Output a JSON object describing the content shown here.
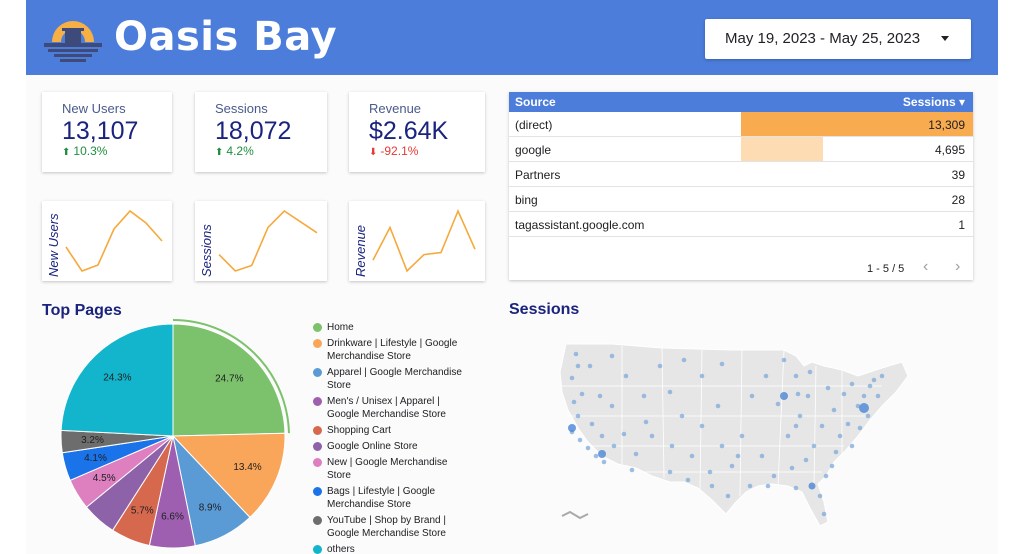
{
  "header": {
    "brand": "Oasis Bay",
    "date_range": "May 19, 2023 - May 25, 2023",
    "colors": {
      "bar": "#4c7ddb",
      "logo_orange": "#f6b045",
      "logo_navy": "#3d4a7a"
    }
  },
  "kpis": [
    {
      "label": "New Users",
      "value": "13,107",
      "delta": "10.3%",
      "direction": "up"
    },
    {
      "label": "Sessions",
      "value": "18,072",
      "delta": "4.2%",
      "direction": "up"
    },
    {
      "label": "Revenue",
      "value": "$2.64K",
      "delta": "-92.1%",
      "direction": "down"
    }
  ],
  "sparklines": [
    {
      "label": "New Users",
      "values": [
        5,
        3,
        3.5,
        6.5,
        8,
        7,
        5.5
      ]
    },
    {
      "label": "Sessions",
      "values": [
        4,
        2.5,
        3,
        6.5,
        8,
        7,
        6
      ]
    },
    {
      "label": "Revenue",
      "values": [
        1.5,
        4.5,
        0.5,
        2,
        2.2,
        6,
        2.5
      ]
    }
  ],
  "source_table": {
    "col_source": "Source",
    "col_sessions": "Sessions",
    "sort_indicator": "▾",
    "rows": [
      {
        "source": "(direct)",
        "sessions": "13,309",
        "value": 13309
      },
      {
        "source": "google",
        "sessions": "4,695",
        "value": 4695
      },
      {
        "source": "Partners",
        "sessions": "39",
        "value": 39
      },
      {
        "source": "bing",
        "sessions": "28",
        "value": 28
      },
      {
        "source": "tagassistant.google.com",
        "sessions": "1",
        "value": 1
      }
    ],
    "pagination": "1 - 5 / 5",
    "prev_icon": "‹",
    "next_icon": "›",
    "bar_colors": [
      "#f9ab4f",
      "#fddcb3"
    ]
  },
  "top_pages": {
    "title": "Top Pages",
    "chart_data": {
      "type": "pie",
      "slices": [
        {
          "name": "Home",
          "value": 24.7,
          "label": "24.7%",
          "color": "#7cc26c"
        },
        {
          "name": "Drinkware | Lifestyle | Google Merchandise Store",
          "value": 13.4,
          "label": "13.4%",
          "color": "#f9a65a"
        },
        {
          "name": "Apparel | Google Merchandise Store",
          "value": 8.9,
          "label": "8.9%",
          "color": "#5b9bd5"
        },
        {
          "name": "Men's / Unisex | Apparel | Google Merchandise Store",
          "value": 6.6,
          "label": "6.6%",
          "color": "#9e5fb0"
        },
        {
          "name": "Shopping Cart",
          "value": 5.7,
          "label": "5.7%",
          "color": "#d6694d"
        },
        {
          "name": "Google Online Store",
          "value": 5.0,
          "label": "",
          "color": "#8e62a8"
        },
        {
          "name": "New | Google Merchandise Store",
          "value": 4.5,
          "label": "4.5%",
          "color": "#de7fc0"
        },
        {
          "name": "Bags | Lifestyle | Google Merchandise Store",
          "value": 4.1,
          "label": "4.1%",
          "color": "#1a73e8"
        },
        {
          "name": "YouTube | Shop by Brand | Google Merchandise Store",
          "value": 3.2,
          "label": "3.2%",
          "color": "#6d6d6d"
        },
        {
          "name": "others",
          "value": 24.3,
          "label": "24.3%",
          "color": "#12b5cb"
        }
      ]
    },
    "legend": [
      {
        "text": "Home",
        "color": "#7cc26c"
      },
      {
        "text": "Drinkware | Lifestyle | Google Merchandise Store",
        "color": "#f9a65a"
      },
      {
        "text": "Apparel | Google Merchandise Store",
        "color": "#5b9bd5"
      },
      {
        "text": "Men's / Unisex | Apparel | Google Merchandise Store",
        "color": "#9e5fb0"
      },
      {
        "text": "Shopping Cart",
        "color": "#d6694d"
      },
      {
        "text": "Google Online Store",
        "color": "#8e62a8"
      },
      {
        "text": "New | Google Merchandise Store",
        "color": "#de7fc0"
      },
      {
        "text": "Bags | Lifestyle | Google Merchandise Store",
        "color": "#1a73e8"
      },
      {
        "text": "YouTube | Shop by Brand | Google Merchandise Store",
        "color": "#6d6d6d"
      },
      {
        "text": "others",
        "color": "#12b5cb"
      }
    ]
  },
  "sessions_map": {
    "title": "Sessions",
    "map_fill": "#e6e6e6",
    "dot_color": "#7ea9d9"
  }
}
